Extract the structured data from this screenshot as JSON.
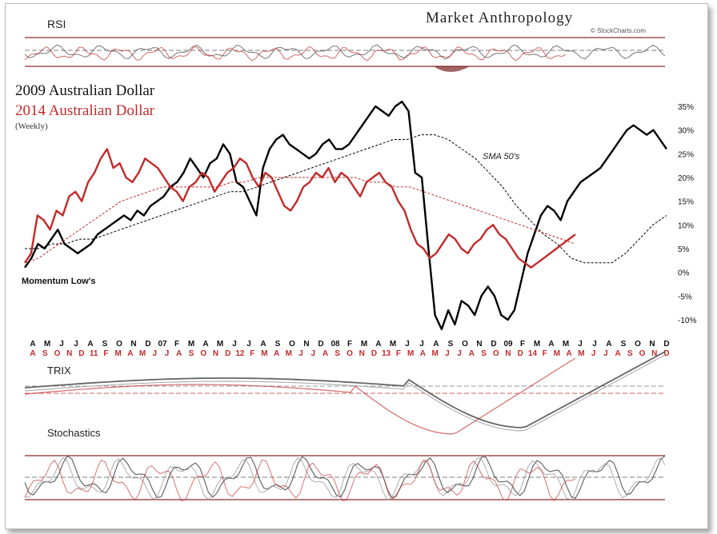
{
  "brand": {
    "logo_text": "Market Anthropology",
    "credit": "© StockCharts.com"
  },
  "chart_data": {
    "type": "line",
    "title": "2009 Australian Dollar",
    "subtitle": "2014 Australian Dollar",
    "note": "(Weekly)",
    "annotations": [
      "SMA 50's",
      "Momentum Low's"
    ],
    "ylim": [
      -12,
      37
    ],
    "y_ticks": [
      "35%",
      "30%",
      "25%",
      "20%",
      "15%",
      "10%",
      "5%",
      "0%",
      "-5%",
      "-10%"
    ],
    "y_tick_values": [
      35,
      30,
      25,
      20,
      15,
      10,
      5,
      0,
      -5,
      -10
    ],
    "x_labels_2009": [
      "A",
      "M",
      "J",
      "J",
      "A",
      "S",
      "O",
      "N",
      "D",
      "07",
      "F",
      "M",
      "A",
      "M",
      "J",
      "J",
      "A",
      "S",
      "O",
      "N",
      "D",
      "08",
      "F",
      "M",
      "A",
      "M",
      "J",
      "J",
      "A",
      "S",
      "O",
      "N",
      "D",
      "09",
      "F",
      "M",
      "A",
      "M",
      "J",
      "J",
      "A",
      "S",
      "O",
      "N",
      "D"
    ],
    "x_labels_2014": [
      "A",
      "S",
      "O",
      "N",
      "D",
      "11",
      "F",
      "M",
      "A",
      "M",
      "J",
      "J",
      "A",
      "S",
      "O",
      "N",
      "D",
      "12",
      "F",
      "M",
      "A",
      "M",
      "J",
      "J",
      "A",
      "S",
      "O",
      "N",
      "D",
      "13",
      "F",
      "M",
      "A",
      "M",
      "J",
      "J",
      "A",
      "S",
      "O",
      "N",
      "D",
      "14",
      "F",
      "M",
      "A",
      "M",
      "J",
      "J",
      "A",
      "S",
      "O",
      "N",
      "D"
    ],
    "series": [
      {
        "name": "2009 Australian Dollar",
        "color": "#000000",
        "values": [
          1,
          3,
          6,
          5,
          7,
          9,
          6,
          5,
          4,
          5,
          6,
          8,
          9,
          10,
          11,
          12,
          11,
          13,
          12,
          14,
          15,
          16,
          18,
          19,
          21,
          24,
          22,
          20,
          23,
          24,
          27,
          25,
          19,
          18,
          15,
          12,
          22,
          26,
          28,
          29,
          27,
          26,
          25,
          24,
          25,
          27,
          28,
          26,
          26,
          27,
          29,
          31,
          33,
          35,
          34,
          33,
          35,
          36,
          34,
          21,
          20,
          5,
          -9,
          -12,
          -8,
          -11,
          -6,
          -7,
          -9,
          -5,
          -3,
          -5,
          -9,
          -10,
          -8,
          -2,
          4,
          8,
          12,
          14,
          13,
          11,
          15,
          17,
          19,
          20,
          21,
          22,
          24,
          26,
          28,
          30,
          31,
          30,
          29,
          30,
          28,
          26
        ]
      },
      {
        "name": "2014 Australian Dollar",
        "color": "#c32a2a",
        "values": [
          2,
          4,
          12,
          11,
          9,
          13,
          12,
          16,
          17,
          15,
          19,
          21,
          24,
          26,
          22,
          23,
          20,
          19,
          21,
          24,
          23,
          22,
          20,
          18,
          17,
          15,
          18,
          19,
          21,
          20,
          17,
          19,
          21,
          22,
          24,
          23,
          20,
          18,
          21,
          20,
          17,
          14,
          13,
          15,
          18,
          19,
          21,
          20,
          22,
          19,
          21,
          20,
          18,
          16,
          19,
          20,
          21,
          19,
          18,
          15,
          13,
          9,
          6,
          5,
          3,
          4,
          6,
          8,
          7,
          5,
          4,
          6,
          7,
          9,
          10,
          8,
          7,
          5,
          3,
          2,
          1,
          2,
          3,
          4,
          5,
          6,
          7,
          8
        ]
      },
      {
        "name": "SMA 50's",
        "color": "#000000",
        "style": "dashed",
        "values": [
          5,
          5,
          6,
          6,
          7,
          7,
          8,
          9,
          10,
          11,
          12,
          13,
          14,
          15,
          16,
          17,
          17,
          18,
          19,
          20,
          21,
          22,
          23,
          24,
          25,
          26,
          27,
          28,
          28,
          29,
          29,
          28,
          26,
          24,
          21,
          18,
          14,
          11,
          8,
          6,
          3,
          2,
          2,
          2,
          4,
          7,
          10,
          12
        ]
      },
      {
        "name": "SMA 50's 2014",
        "color": "#c32a2a",
        "style": "dashed",
        "values": [
          2,
          3,
          5,
          7,
          9,
          11,
          13,
          15,
          16,
          17,
          18,
          18,
          18,
          18,
          18,
          19,
          19,
          20,
          20,
          20,
          20,
          20,
          20,
          20,
          20,
          19,
          19,
          18,
          18,
          17,
          16,
          15,
          14,
          13,
          12,
          11,
          10,
          9,
          8,
          7,
          6
        ]
      }
    ],
    "panels": [
      {
        "name": "RSI",
        "label": "RSI"
      },
      {
        "name": "TRIX",
        "label": "TRIX"
      },
      {
        "name": "Stochastics",
        "label": "Stochastics"
      }
    ],
    "colors": {
      "black_series": "#000000",
      "red_series": "#c32a2a",
      "ref_line": "#9b3a3a"
    }
  }
}
